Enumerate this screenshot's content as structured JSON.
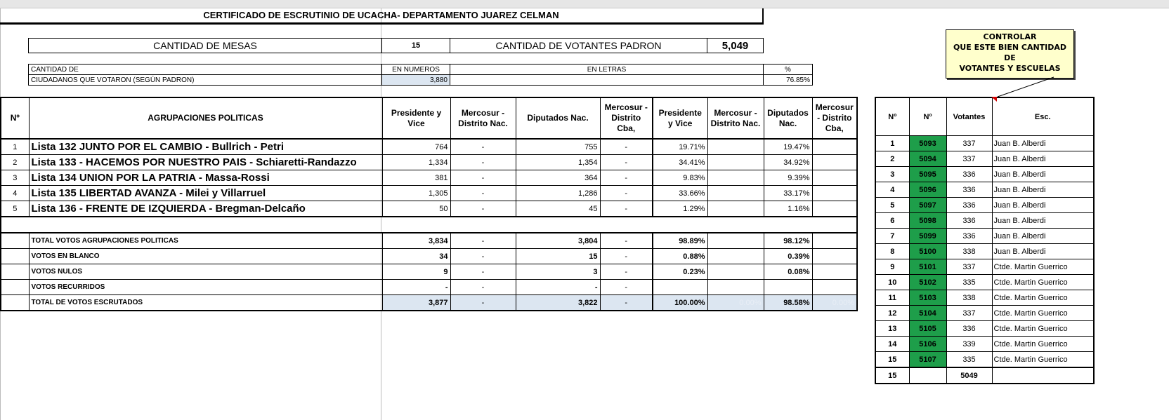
{
  "title": "CERTIFICADO DE ESCRUTINIO DE UCACHA- DEPARTAMENTO JUAREZ CELMAN",
  "mesas": {
    "label": "CANTIDAD DE MESAS",
    "value": "15",
    "votantes_label": "CANTIDAD DE VOTANTES PADRON",
    "votantes_value": "5,049"
  },
  "cantidad": {
    "row1_label": "CANTIDAD DE",
    "numeros_label": "EN NUMEROS",
    "letras_label": "EN LETRAS",
    "pct_label": "%",
    "row2_label": "CIUDADANOS QUE VOTARON (SEGÚN PADRON)",
    "numeros_value": "3,880",
    "letras_value": "",
    "pct_value": "76.85%"
  },
  "main": {
    "headers": [
      "Nº",
      "AGRUPACIONES POLITICAS",
      "Presidente y Vice",
      "Mercosur - Distrito Nac.",
      "Diputados Nac.",
      "Mercosur - Distrito Cba,",
      "Presidente y Vice",
      "Mercosur - Distrito Nac.",
      "Diputados Nac.",
      "Mercosur - Distrito Cba,"
    ],
    "parties": [
      {
        "n": "1",
        "name": "Lista 132  JUNTO POR EL CAMBIO - Bullrich - Petri",
        "vals": [
          "764",
          "-",
          "755",
          "-",
          "19.71%",
          "",
          "19.47%",
          ""
        ]
      },
      {
        "n": "2",
        "name": "Lista 133 -  HACEMOS POR NUESTRO PAIS - Schiaretti-Randazzo",
        "vals": [
          "1,334",
          "-",
          "1,354",
          "-",
          "34.41%",
          "",
          "34.92%",
          ""
        ]
      },
      {
        "n": "3",
        "name": "Lista 134 UNION POR LA PATRIA - Massa-Rossi",
        "vals": [
          "381",
          "-",
          "364",
          "-",
          "9.83%",
          "",
          "9.39%",
          ""
        ]
      },
      {
        "n": "4",
        "name": "Lista 135 LIBERTAD AVANZA - Milei y Villarruel",
        "vals": [
          "1,305",
          "-",
          "1,286",
          "-",
          "33.66%",
          "",
          "33.17%",
          ""
        ]
      },
      {
        "n": "5",
        "name": "Lista 136 - FRENTE DE IZQUIERDA - Bregman-Delcaño",
        "vals": [
          "50",
          "-",
          "45",
          "-",
          "1.29%",
          "",
          "1.16%",
          ""
        ]
      }
    ],
    "totals": [
      {
        "name": "TOTAL VOTOS AGRUPACIONES POLITICAS",
        "vals": [
          "3,834",
          "-",
          "3,804",
          "-",
          "98.89%",
          "",
          "98.12%",
          ""
        ]
      },
      {
        "name": "VOTOS EN BLANCO",
        "vals": [
          "34",
          "-",
          "15",
          "-",
          "0.88%",
          "",
          "0.39%",
          ""
        ]
      },
      {
        "name": "VOTOS NULOS",
        "vals": [
          "9",
          "-",
          "3",
          "-",
          "0.23%",
          "",
          "0.08%",
          ""
        ]
      },
      {
        "name": "VOTOS RECURRIDOS",
        "vals": [
          "-",
          "-",
          "-",
          "-",
          "",
          "",
          "",
          ""
        ]
      },
      {
        "name": "TOTAL DE VOTOS ESCRUTADOS",
        "vals": [
          "3,877",
          "-",
          "3,822",
          "-",
          "100.00%",
          "0.00%",
          "98.58%",
          "0.00%"
        ]
      }
    ]
  },
  "mesas_table": {
    "headers": [
      "Nº",
      "Nº",
      "Votantes",
      "Esc."
    ],
    "rows": [
      [
        "1",
        "5093",
        "337",
        "Juan B. Alberdi"
      ],
      [
        "2",
        "5094",
        "337",
        "Juan B. Alberdi"
      ],
      [
        "3",
        "5095",
        "336",
        "Juan B. Alberdi"
      ],
      [
        "4",
        "5096",
        "336",
        "Juan B. Alberdi"
      ],
      [
        "5",
        "5097",
        "336",
        "Juan B. Alberdi"
      ],
      [
        "6",
        "5098",
        "336",
        "Juan B. Alberdi"
      ],
      [
        "7",
        "5099",
        "336",
        "Juan B. Alberdi"
      ],
      [
        "8",
        "5100",
        "338",
        "Juan B. Alberdi"
      ],
      [
        "9",
        "5101",
        "337",
        "Ctde. Martin Guerrico"
      ],
      [
        "10",
        "5102",
        "335",
        "Ctde. Martin Guerrico"
      ],
      [
        "11",
        "5103",
        "338",
        "Ctde. Martin Guerrico"
      ],
      [
        "12",
        "5104",
        "337",
        "Ctde. Martin Guerrico"
      ],
      [
        "13",
        "5105",
        "336",
        "Ctde. Martin Guerrico"
      ],
      [
        "14",
        "5106",
        "339",
        "Ctde. Martin Guerrico"
      ],
      [
        "15",
        "5107",
        "335",
        "Ctde. Martin Guerrico"
      ]
    ],
    "summary": [
      "15",
      "",
      "5049",
      ""
    ]
  },
  "note": "CONTROLAR\nQUE ESTE  BIEN CANTIDAD DE\nVOTANTES Y ESCUELAS",
  "colors": {
    "mesa_green": "#1e9e4a",
    "total_fill": "#dce6f1",
    "note_bg": "#ffffcc"
  }
}
